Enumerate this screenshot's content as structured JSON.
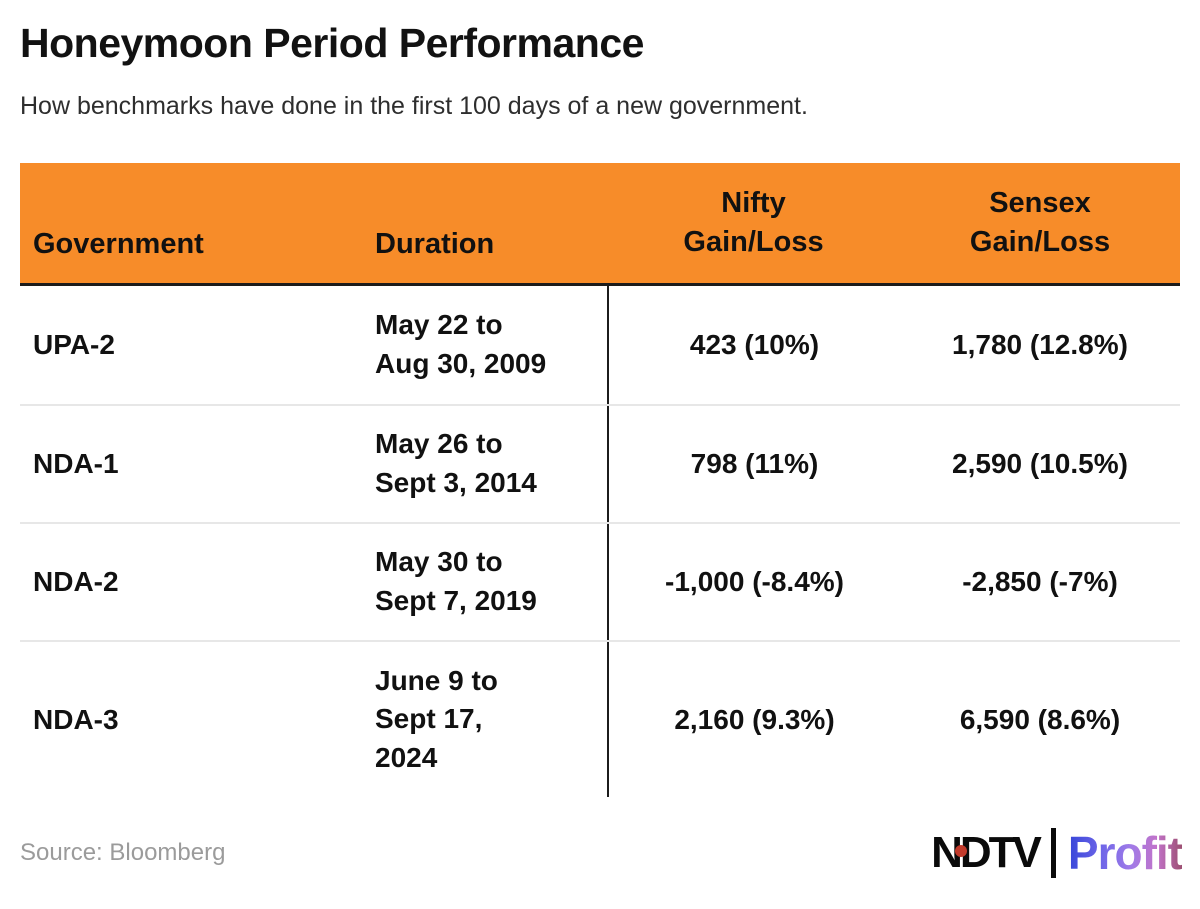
{
  "header": {
    "title": "Honeymoon Period Performance",
    "subtitle": "How benchmarks have done in the first 100 days of a new government."
  },
  "table": {
    "columns": [
      {
        "label": "Government"
      },
      {
        "label": "Duration"
      },
      {
        "label": "Nifty Gain/Loss",
        "line1": "Nifty",
        "line2": "Gain/Loss"
      },
      {
        "label": "Sensex Gain/Loss",
        "line1": "Sensex",
        "line2": "Gain/Loss"
      }
    ],
    "rows": [
      {
        "government": "UPA-2",
        "duration_lines": [
          "May 22 to",
          "Aug 30, 2009"
        ],
        "nifty": "423 (10%)",
        "sensex": "1,780 (12.8%)"
      },
      {
        "government": "NDA-1",
        "duration_lines": [
          "May 26 to",
          "Sept 3, 2014"
        ],
        "nifty": "798 (11%)",
        "sensex": "2,590 (10.5%)"
      },
      {
        "government": "NDA-2",
        "duration_lines": [
          "May 30 to",
          "Sept 7, 2019"
        ],
        "nifty": "-1,000 (-8.4%)",
        "sensex": "-2,850 (-7%)"
      },
      {
        "government": "NDA-3",
        "duration_lines": [
          "June 9 to",
          "Sept 17,",
          "2024"
        ],
        "nifty": "2,160 (9.3%)",
        "sensex": "6,590 (8.6%)"
      }
    ]
  },
  "footer": {
    "source": "Source: Bloomberg",
    "logo_ndtv": "NDTV",
    "logo_profit": "Profit"
  },
  "colors": {
    "header_bg": "#F78C29",
    "hard_line": "#1c1c1c",
    "row_divider": "#e7e7e7",
    "muted": "#9b9b9b",
    "ndtv_red": "#c23a2b"
  },
  "chart_data": {
    "type": "table",
    "title": "Honeymoon Period Performance",
    "subtitle": "How benchmarks have done in the first 100 days of a new government.",
    "columns": [
      "Government",
      "Duration",
      "Nifty Gain/Loss",
      "Sensex Gain/Loss"
    ],
    "rows": [
      [
        "UPA-2",
        "May 22 to Aug 30, 2009",
        "423 (10%)",
        "1,780 (12.8%)"
      ],
      [
        "NDA-1",
        "May 26 to Sept 3, 2014",
        "798 (11%)",
        "2,590 (10.5%)"
      ],
      [
        "NDA-2",
        "May 30 to Sept 7, 2019",
        "-1,000 (-8.4%)",
        "-2,850 (-7%)"
      ],
      [
        "NDA-3",
        "June 9 to Sept 17, 2024",
        "2,160 (9.3%)",
        "6,590 (8.6%)"
      ]
    ],
    "numeric": {
      "nifty_points": [
        423,
        798,
        -1000,
        2160
      ],
      "nifty_percent": [
        10,
        11,
        -8.4,
        9.3
      ],
      "sensex_points": [
        1780,
        2590,
        -2850,
        6590
      ],
      "sensex_percent": [
        12.8,
        10.5,
        -7,
        8.6
      ]
    },
    "source": "Bloomberg"
  }
}
